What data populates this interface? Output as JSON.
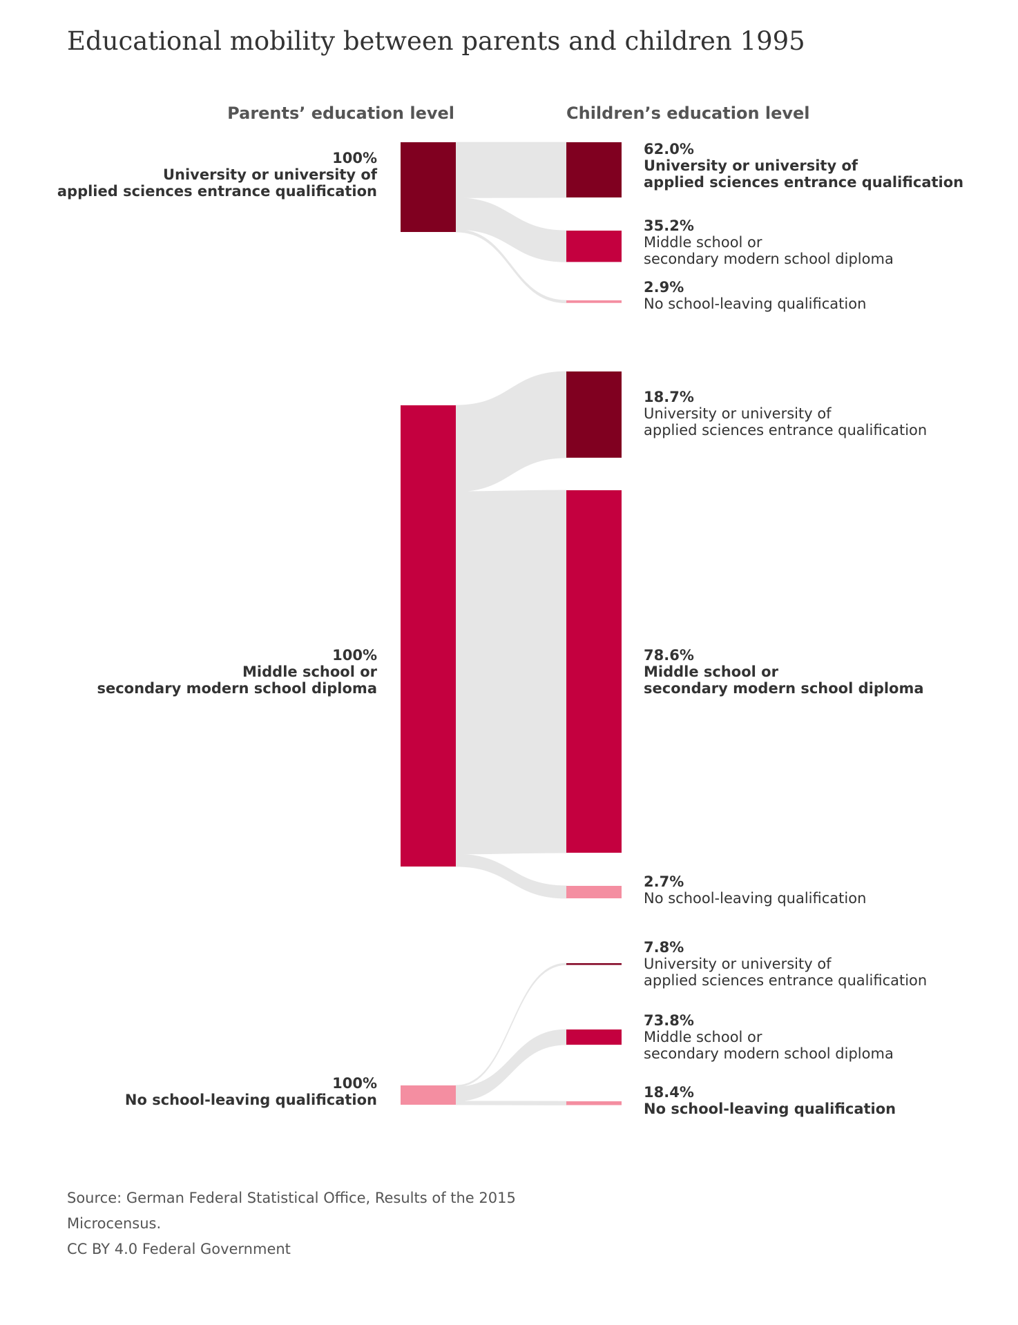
{
  "chart_data": {
    "type": "sankey",
    "title": "Educational mobility between parents and children 1995",
    "left_axis_label": "Parents’ education level",
    "right_axis_label": "Children’s education level",
    "colors": {
      "university": "#800020",
      "middle": "#c4003f",
      "none": "#f48ea1",
      "flow": "#e6e6e6"
    },
    "groups": [
      {
        "parent": {
          "percent": "100%",
          "lines": [
            "University or university of",
            "applied sciences entrance qualification"
          ],
          "color": "university",
          "bold": true
        },
        "children": [
          {
            "value": 62.0,
            "percent": "62.0%",
            "lines": [
              "University or university of",
              "applied sciences entrance qualification"
            ],
            "color": "university",
            "bold": true
          },
          {
            "value": 35.2,
            "percent": "35.2%",
            "lines": [
              "Middle school or",
              "secondary modern school diploma"
            ],
            "color": "middle",
            "bold": false
          },
          {
            "value": 2.9,
            "percent": "2.9%",
            "lines": [
              "No school-leaving qualification"
            ],
            "color": "none",
            "bold": false
          }
        ]
      },
      {
        "parent": {
          "percent": "100%",
          "lines": [
            "Middle school or",
            "secondary modern school diploma"
          ],
          "color": "middle",
          "bold": true
        },
        "children": [
          {
            "value": 18.7,
            "percent": "18.7%",
            "lines": [
              "University or university of",
              "applied sciences entrance qualification"
            ],
            "color": "university",
            "bold": false
          },
          {
            "value": 78.6,
            "percent": "78.6%",
            "lines": [
              "Middle school or",
              "secondary modern school diploma"
            ],
            "color": "middle",
            "bold": true
          },
          {
            "value": 2.7,
            "percent": "2.7%",
            "lines": [
              "No school-leaving qualification"
            ],
            "color": "none",
            "bold": false
          }
        ]
      },
      {
        "parent": {
          "percent": "100%",
          "lines": [
            "No school-leaving qualification"
          ],
          "color": "none",
          "bold": true
        },
        "children": [
          {
            "value": 7.8,
            "percent": "7.8%",
            "lines": [
              "University or university of",
              "applied sciences entrance qualification"
            ],
            "color": "university",
            "bold": false
          },
          {
            "value": 73.8,
            "percent": "73.8%",
            "lines": [
              "Middle school or",
              "secondary modern school diploma"
            ],
            "color": "middle",
            "bold": false
          },
          {
            "value": 18.4,
            "percent": "18.4%",
            "lines": [
              "No school-leaving qualification"
            ],
            "color": "none",
            "bold": true
          }
        ]
      }
    ],
    "source_lines": [
      "Source: German Federal Statistical Office, Results of the 2015",
      "Microcensus.",
      "CC BY 4.0 Federal Government"
    ]
  }
}
